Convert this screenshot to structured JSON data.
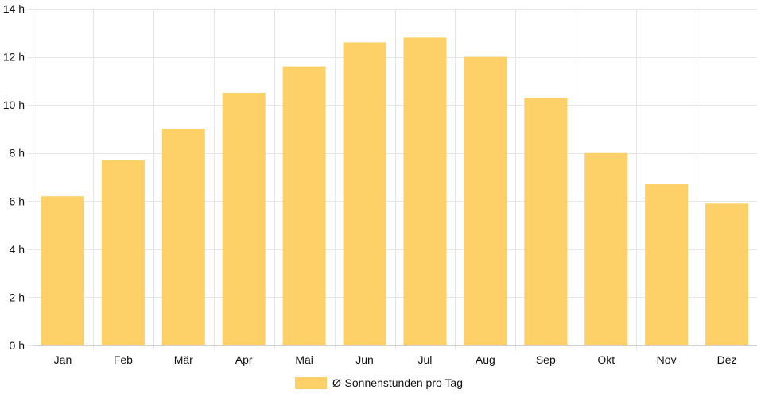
{
  "chart_data": {
    "type": "bar",
    "categories": [
      "Jan",
      "Feb",
      "Mär",
      "Apr",
      "Mai",
      "Jun",
      "Jul",
      "Aug",
      "Sep",
      "Okt",
      "Nov",
      "Dez"
    ],
    "series": [
      {
        "name": "Ø-Sonnenstunden pro Tag",
        "values": [
          6.2,
          7.7,
          9.0,
          10.5,
          11.6,
          12.6,
          12.8,
          12.0,
          10.3,
          8.0,
          6.7,
          5.9
        ],
        "color": "#fdd068"
      }
    ],
    "y_unit_suffix": " h",
    "ylim": [
      0,
      14
    ],
    "y_ticks": [
      0,
      2,
      4,
      6,
      8,
      10,
      12,
      14
    ],
    "grid": true,
    "grid_color": "#e6e6e6",
    "legend_position": "bottom"
  }
}
